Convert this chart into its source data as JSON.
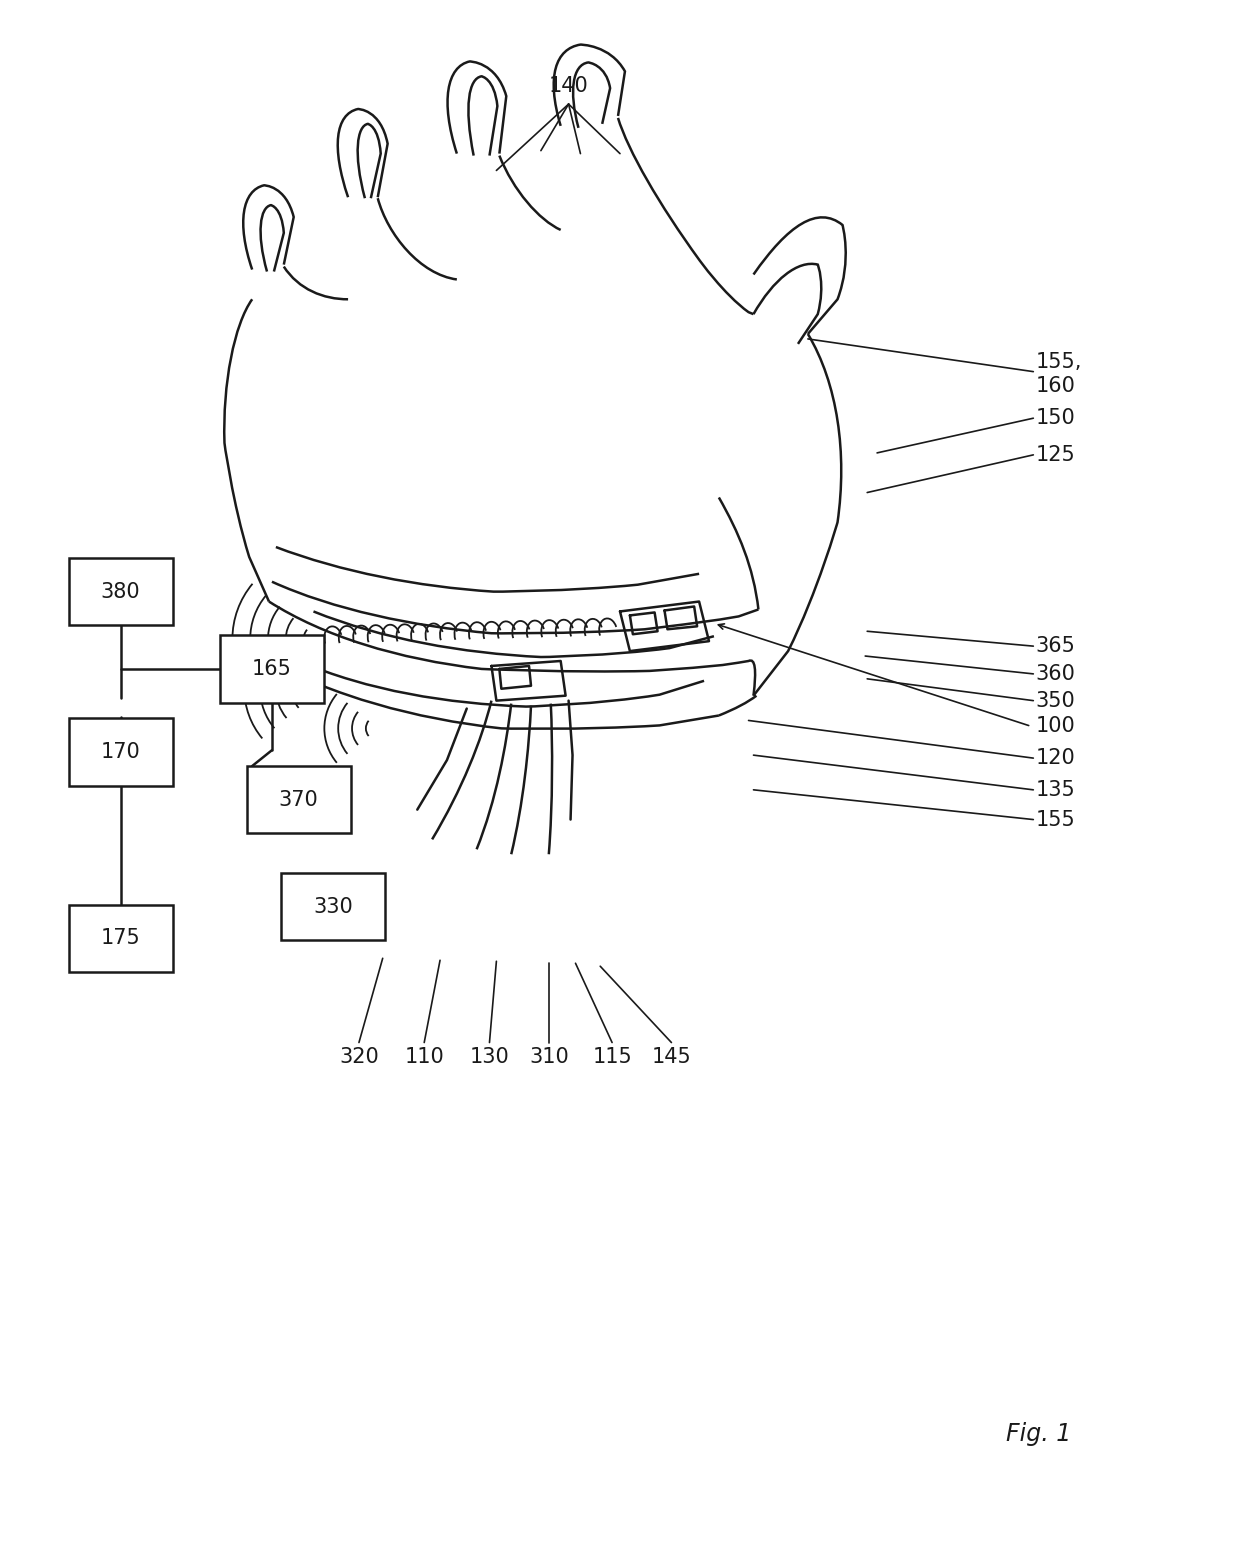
{
  "bg_color": "#ffffff",
  "line_color": "#1a1a1a",
  "fig_width": 12.4,
  "fig_height": 15.41,
  "lw_main": 1.8,
  "lw_thin": 1.3,
  "lw_ref": 1.2,
  "label_fs": 14,
  "fig1_label": "Fig. 1"
}
